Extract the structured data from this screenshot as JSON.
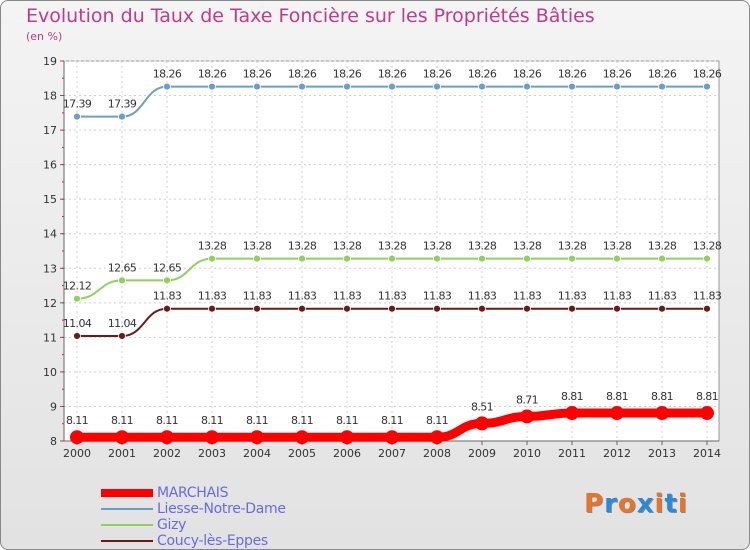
{
  "header": {
    "title": "Evolution du Taux de Taxe Foncière sur les Propriétés Bâties",
    "subtitle": "(en %)"
  },
  "logo": {
    "text": "Proxiti",
    "letters": [
      "P",
      "r",
      "o",
      "x",
      "i",
      "t",
      "i"
    ],
    "colors": [
      "#e8742a",
      "#2a8ad6",
      "#e8742a",
      "#2a8ad6",
      "#e8742a",
      "#2a8ad6",
      "#e8742a"
    ]
  },
  "chart_data": {
    "type": "line",
    "title": "Evolution du Taux de Taxe Foncière sur les Propriétés Bâties",
    "ylabel": "(en %)",
    "xlabel": "",
    "ylim": [
      8,
      19
    ],
    "yticks": [
      8,
      9,
      10,
      11,
      12,
      13,
      14,
      15,
      16,
      17,
      18,
      19
    ],
    "x": [
      "2000",
      "2001",
      "2002",
      "2003",
      "2004",
      "2005",
      "2006",
      "2007",
      "2008",
      "2009",
      "2010",
      "2011",
      "2012",
      "2013",
      "2014"
    ],
    "legend_position": "bottom-left",
    "series": [
      {
        "name": "MARCHAIS",
        "color": "#ff0000",
        "values": [
          8.11,
          8.11,
          8.11,
          8.11,
          8.11,
          8.11,
          8.11,
          8.11,
          8.11,
          8.51,
          8.71,
          8.81,
          8.81,
          8.81,
          8.81
        ],
        "labels": [
          "8.11",
          "8.11",
          "8.11",
          "8.11",
          "8.11",
          "8.11",
          "8.11",
          "8.11",
          "8.11",
          "8.51",
          "8.71",
          "8.81",
          "8.81",
          "8.81",
          "8.81"
        ]
      },
      {
        "name": "Liesse-Notre-Dame",
        "color": "#6d9ec6",
        "values": [
          17.39,
          17.39,
          18.26,
          18.26,
          18.26,
          18.26,
          18.26,
          18.26,
          18.26,
          18.26,
          18.26,
          18.26,
          18.26,
          18.26,
          18.26
        ],
        "labels": [
          "17.39",
          "17.39",
          "18.26",
          "18.26",
          "18.26",
          "18.26",
          "18.26",
          "18.26",
          "18.26",
          "18.26",
          "18.26",
          "18.26",
          "18.26",
          "18.26",
          "18.26"
        ]
      },
      {
        "name": "Gizy",
        "color": "#8fd15c",
        "values": [
          12.12,
          12.65,
          12.65,
          13.28,
          13.28,
          13.28,
          13.28,
          13.28,
          13.28,
          13.28,
          13.28,
          13.28,
          13.28,
          13.28,
          13.28
        ],
        "labels": [
          "12.12",
          "12.65",
          "12.65",
          "13.28",
          "13.28",
          "13.28",
          "13.28",
          "13.28",
          "13.28",
          "13.28",
          "13.28",
          "13.28",
          "13.28",
          "13.28",
          "13.28"
        ]
      },
      {
        "name": "Coucy-lès-Eppes",
        "color": "#6b1a1a",
        "values": [
          11.04,
          11.04,
          11.83,
          11.83,
          11.83,
          11.83,
          11.83,
          11.83,
          11.83,
          11.83,
          11.83,
          11.83,
          11.83,
          11.83,
          11.83
        ],
        "labels": [
          "11.04",
          "11.04",
          "11.83",
          "11.83",
          "11.83",
          "11.83",
          "11.83",
          "11.83",
          "11.83",
          "11.83",
          "11.83",
          "11.83",
          "11.83",
          "11.83",
          "11.83"
        ]
      }
    ]
  }
}
